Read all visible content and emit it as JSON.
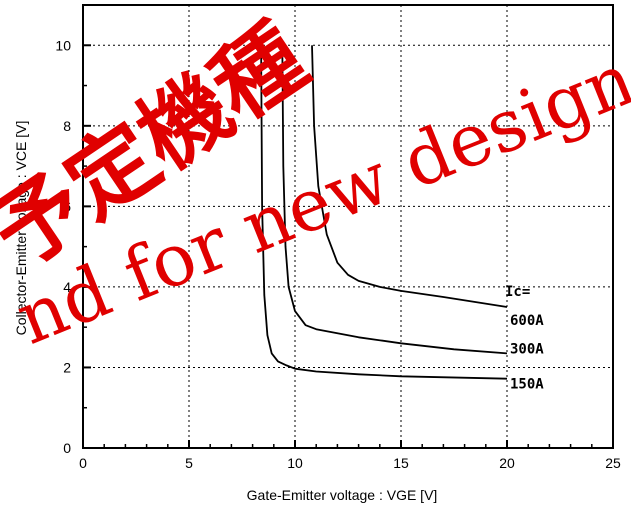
{
  "chart_data": {
    "type": "line",
    "xlabel": "Gate-Emitter  voltage  :  VGE [V]",
    "ylabel": "Collector-Emitter voltage  :   VCE [V]",
    "xlim": [
      0,
      25
    ],
    "ylim": [
      0,
      11
    ],
    "xticks": [
      0,
      5,
      10,
      15,
      20,
      25
    ],
    "yticks": [
      0,
      2,
      4,
      6,
      8,
      10
    ],
    "grid": true,
    "legend_title": "Ic=",
    "series": [
      {
        "name": "600A",
        "x": [
          10.8,
          10.9,
          11.1,
          11.5,
          12.0,
          12.5,
          13.0,
          14.0,
          15.0,
          17.0,
          20.0
        ],
        "y": [
          10,
          8.0,
          6.5,
          5.3,
          4.6,
          4.3,
          4.15,
          4.0,
          3.9,
          3.75,
          3.5
        ]
      },
      {
        "name": "300A",
        "x": [
          9.4,
          9.45,
          9.55,
          9.7,
          10.0,
          10.5,
          11.0,
          12.0,
          13.0,
          15.0,
          17.5,
          20.0
        ],
        "y": [
          10,
          7.0,
          5.0,
          4.0,
          3.4,
          3.05,
          2.95,
          2.85,
          2.75,
          2.6,
          2.45,
          2.35
        ]
      },
      {
        "name": "150A",
        "x": [
          8.4,
          8.45,
          8.55,
          8.7,
          8.9,
          9.2,
          9.6,
          10.0,
          11.0,
          13.0,
          15.0,
          20.0
        ],
        "y": [
          10,
          6.0,
          3.8,
          2.8,
          2.35,
          2.15,
          2.05,
          1.97,
          1.9,
          1.83,
          1.78,
          1.72
        ]
      }
    ]
  },
  "watermark": {
    "jp_text": "予定機種",
    "en_text": "nd for new design."
  },
  "colors": {
    "line": "#000000",
    "watermark": "#e00000",
    "background": "#ffffff"
  }
}
